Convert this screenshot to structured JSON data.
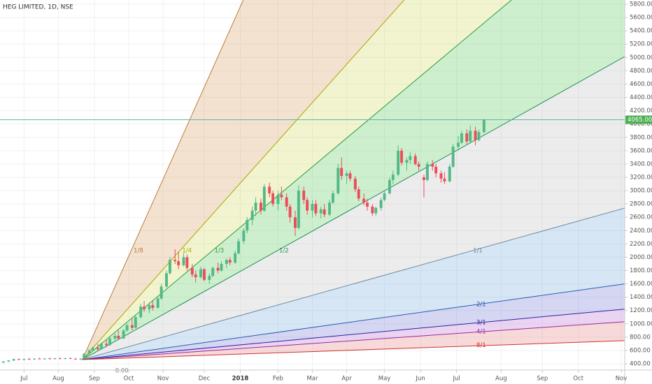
{
  "chart_data": {
    "type": "candlestick",
    "title": "HEG LIMITED, 1D, NSE",
    "xlim": [
      -2,
      362
    ],
    "xticks": [
      {
        "value": 12,
        "label": "Jul"
      },
      {
        "value": 32,
        "label": "Aug"
      },
      {
        "value": 53,
        "label": "Sep"
      },
      {
        "value": 73,
        "label": "Oct"
      },
      {
        "value": 93,
        "label": "Nov"
      },
      {
        "value": 117,
        "label": "Dec"
      },
      {
        "value": 138,
        "label": "2018"
      },
      {
        "value": 160,
        "label": "Feb"
      },
      {
        "value": 180,
        "label": "Mar"
      },
      {
        "value": 200,
        "label": "Apr"
      },
      {
        "value": 222,
        "label": "May"
      },
      {
        "value": 243,
        "label": "Jun"
      },
      {
        "value": 264,
        "label": "Jul"
      },
      {
        "value": 290,
        "label": "Aug"
      },
      {
        "value": 314,
        "label": "Sep"
      },
      {
        "value": 335,
        "label": "Oct"
      },
      {
        "value": 360,
        "label": "Nov"
      }
    ],
    "ylim": [
      306,
      5863
    ],
    "yticks": [
      {
        "value": 400,
        "label": "400.00"
      },
      {
        "value": 600,
        "label": "600.00"
      },
      {
        "value": 800,
        "label": "800.00"
      },
      {
        "value": 1000,
        "label": "1000.00"
      },
      {
        "value": 1200,
        "label": "1200.00"
      },
      {
        "value": 1400,
        "label": "1400.00"
      },
      {
        "value": 1600,
        "label": "1600.00"
      },
      {
        "value": 1800,
        "label": "1800.00"
      },
      {
        "value": 2000,
        "label": "2000.00"
      },
      {
        "value": 2200,
        "label": "2200.00"
      },
      {
        "value": 2400,
        "label": "2400.00"
      },
      {
        "value": 2600,
        "label": "2600.00"
      },
      {
        "value": 2800,
        "label": "2800.00"
      },
      {
        "value": 3000,
        "label": "3000.00"
      },
      {
        "value": 3200,
        "label": "3200.00"
      },
      {
        "value": 3400,
        "label": "3400.00"
      },
      {
        "value": 3600,
        "label": "3600.00"
      },
      {
        "value": 3800,
        "label": "3800.00"
      },
      {
        "value": 4000,
        "label": "4000.00"
      },
      {
        "value": 4200,
        "label": "4200.00"
      },
      {
        "value": 4400,
        "label": "4400.00"
      },
      {
        "value": 4600,
        "label": "4600.00"
      },
      {
        "value": 4800,
        "label": "4800.00"
      },
      {
        "value": 5000,
        "label": "5000.00"
      },
      {
        "value": 5200,
        "label": "5200.00"
      },
      {
        "value": 5400,
        "label": "5400.00"
      },
      {
        "value": 5600,
        "label": "5600.00"
      },
      {
        "value": 5800,
        "label": "5800.00"
      }
    ],
    "grid": true,
    "up_color": "#53b987",
    "down_color": "#eb4d5c",
    "candles": {
      "x": [
        0,
        3,
        6,
        9,
        12,
        15,
        18,
        21,
        24,
        27,
        30,
        33,
        36,
        39,
        42,
        45,
        47,
        50,
        52,
        55,
        57,
        60,
        62,
        65,
        67,
        70,
        72,
        75,
        77,
        80,
        82,
        85,
        87,
        90,
        92,
        95,
        97,
        100,
        102,
        105,
        107,
        110,
        112,
        115,
        117,
        120,
        122,
        125,
        127,
        130,
        132,
        135,
        137,
        140,
        142,
        145,
        147,
        150,
        152,
        155,
        157,
        160,
        162,
        165,
        167,
        170,
        172,
        175,
        177,
        180,
        182,
        185,
        187,
        190,
        192,
        195,
        197,
        200,
        202,
        205,
        207,
        210,
        212,
        215,
        217,
        220,
        222,
        225,
        227,
        230,
        232,
        235,
        237,
        240,
        242,
        245,
        247,
        250,
        252,
        255,
        257,
        260,
        262,
        265,
        267,
        270,
        272,
        275,
        277,
        280
      ],
      "open": [
        420,
        435,
        450,
        470,
        460,
        472,
        468,
        478,
        470,
        480,
        475,
        482,
        478,
        485,
        475,
        470,
        478,
        550,
        600,
        640,
        620,
        700,
        680,
        780,
        820,
        780,
        900,
        980,
        940,
        1100,
        1260,
        1220,
        1280,
        1240,
        1380,
        1560,
        1760,
        1960,
        1940,
        1880,
        2000,
        1840,
        1740,
        1700,
        1820,
        1660,
        1720,
        1840,
        1800,
        1900,
        1960,
        1920,
        2060,
        2240,
        2400,
        2560,
        2700,
        2820,
        2700,
        3060,
        2960,
        2800,
        2940,
        2900,
        2760,
        2600,
        2440,
        3000,
        2860,
        2700,
        2800,
        2660,
        2720,
        2640,
        2820,
        2960,
        3340,
        3220,
        3260,
        3180,
        3020,
        2880,
        2820,
        2760,
        2660,
        2740,
        2860,
        2960,
        3160,
        3240,
        3600,
        3420,
        3460,
        3520,
        3400,
        3200,
        3160,
        3400,
        3360,
        3260,
        3180,
        3140,
        3360,
        3660,
        3720,
        3860,
        3740,
        3900,
        3760,
        3880
      ],
      "high": [
        440,
        455,
        475,
        480,
        478,
        490,
        482,
        492,
        485,
        492,
        488,
        495,
        490,
        495,
        488,
        482,
        560,
        620,
        660,
        700,
        720,
        760,
        800,
        860,
        900,
        920,
        1000,
        1080,
        1120,
        1300,
        1340,
        1320,
        1360,
        1400,
        1600,
        1800,
        2000,
        2120,
        2080,
        2060,
        2040,
        1900,
        1800,
        1860,
        1840,
        1760,
        1860,
        1920,
        1940,
        1980,
        2000,
        2100,
        2280,
        2440,
        2600,
        2760,
        2900,
        2880,
        3100,
        3120,
        3000,
        3000,
        3060,
        2960,
        2800,
        2700,
        3080,
        3060,
        2900,
        2860,
        2860,
        2760,
        2800,
        2860,
        3000,
        3400,
        3500,
        3300,
        3300,
        3220,
        3060,
        2960,
        2880,
        2800,
        2760,
        2900,
        3000,
        3200,
        3300,
        3680,
        3640,
        3500,
        3580,
        3560,
        3440,
        3240,
        3440,
        3460,
        3400,
        3300,
        3280,
        3400,
        3700,
        3820,
        3900,
        3920,
        3980,
        3960,
        3920,
        4080
      ],
      "low": [
        410,
        425,
        440,
        455,
        450,
        462,
        455,
        468,
        460,
        470,
        462,
        470,
        465,
        472,
        462,
        455,
        470,
        540,
        580,
        600,
        610,
        650,
        670,
        750,
        760,
        770,
        880,
        900,
        930,
        1080,
        1180,
        1160,
        1200,
        1230,
        1360,
        1540,
        1740,
        1900,
        1820,
        1860,
        1800,
        1700,
        1620,
        1680,
        1640,
        1600,
        1700,
        1760,
        1780,
        1840,
        1880,
        1900,
        2040,
        2200,
        2360,
        2480,
        2620,
        2640,
        2680,
        2900,
        2760,
        2700,
        2860,
        2700,
        2520,
        2320,
        2420,
        2800,
        2640,
        2600,
        2620,
        2580,
        2600,
        2620,
        2800,
        2940,
        3160,
        3100,
        3140,
        2980,
        2840,
        2780,
        2700,
        2620,
        2620,
        2700,
        2840,
        2940,
        3100,
        3220,
        3380,
        3300,
        3400,
        3380,
        3300,
        2900,
        3140,
        3300,
        3200,
        3120,
        3100,
        3120,
        3340,
        3600,
        3700,
        3700,
        3720,
        3680,
        3740,
        3860
      ],
      "close": [
        435,
        450,
        470,
        460,
        472,
        468,
        478,
        470,
        480,
        475,
        482,
        478,
        485,
        475,
        470,
        478,
        550,
        600,
        640,
        620,
        700,
        680,
        780,
        820,
        780,
        900,
        980,
        940,
        1100,
        1260,
        1220,
        1280,
        1240,
        1380,
        1560,
        1760,
        1960,
        1940,
        1880,
        2000,
        1840,
        1740,
        1700,
        1820,
        1660,
        1720,
        1840,
        1800,
        1900,
        1960,
        1920,
        2060,
        2240,
        2400,
        2560,
        2700,
        2820,
        2700,
        3060,
        2960,
        2800,
        2940,
        2900,
        2760,
        2600,
        2440,
        3000,
        2860,
        2700,
        2800,
        2660,
        2720,
        2640,
        2820,
        2960,
        3340,
        3220,
        3260,
        3180,
        3020,
        2880,
        2820,
        2760,
        2660,
        2740,
        2860,
        2960,
        3160,
        3240,
        3600,
        3420,
        3460,
        3520,
        3400,
        3360,
        3160,
        3400,
        3360,
        3260,
        3180,
        3140,
        3360,
        3660,
        3720,
        3860,
        3740,
        3900,
        3760,
        3880,
        4065
      ]
    },
    "last_price_label": "4065.00",
    "last_price_color": "#4caf50",
    "gann_fan": {
      "origin_x": 46,
      "origin_price": 463,
      "price_per_bar": 7.2,
      "origin_label": "0.00",
      "levels": [
        {
          "value": 0.125,
          "label": "1/8",
          "color": "#c07a3c",
          "fill": "#d9a66b"
        },
        {
          "value": 0.25,
          "label": "1/4",
          "color": "#a8a800",
          "fill": "#d2dc6a"
        },
        {
          "value": 0.3333,
          "label": "1/3",
          "color": "#2f9a3a",
          "fill": "#66cc66"
        },
        {
          "value": 0.5,
          "label": "1/2",
          "color": "#1f8f5a",
          "fill": "#c4c4c4"
        },
        {
          "value": 1,
          "label": "1/1",
          "color": "#6f8aa0",
          "fill": "#7fb2dd"
        },
        {
          "value": 2,
          "label": "2/1",
          "color": "#2a5db0",
          "fill": "#7a7fd8"
        },
        {
          "value": 3,
          "label": "3/1",
          "color": "#3020a0",
          "fill": "#c07ad8"
        },
        {
          "value": 4,
          "label": "4/1",
          "color": "#9a2a9a",
          "fill": "#e88a8a"
        },
        {
          "value": 8,
          "label": "8/1",
          "color": "#d03030",
          "fill": "none"
        }
      ]
    }
  }
}
